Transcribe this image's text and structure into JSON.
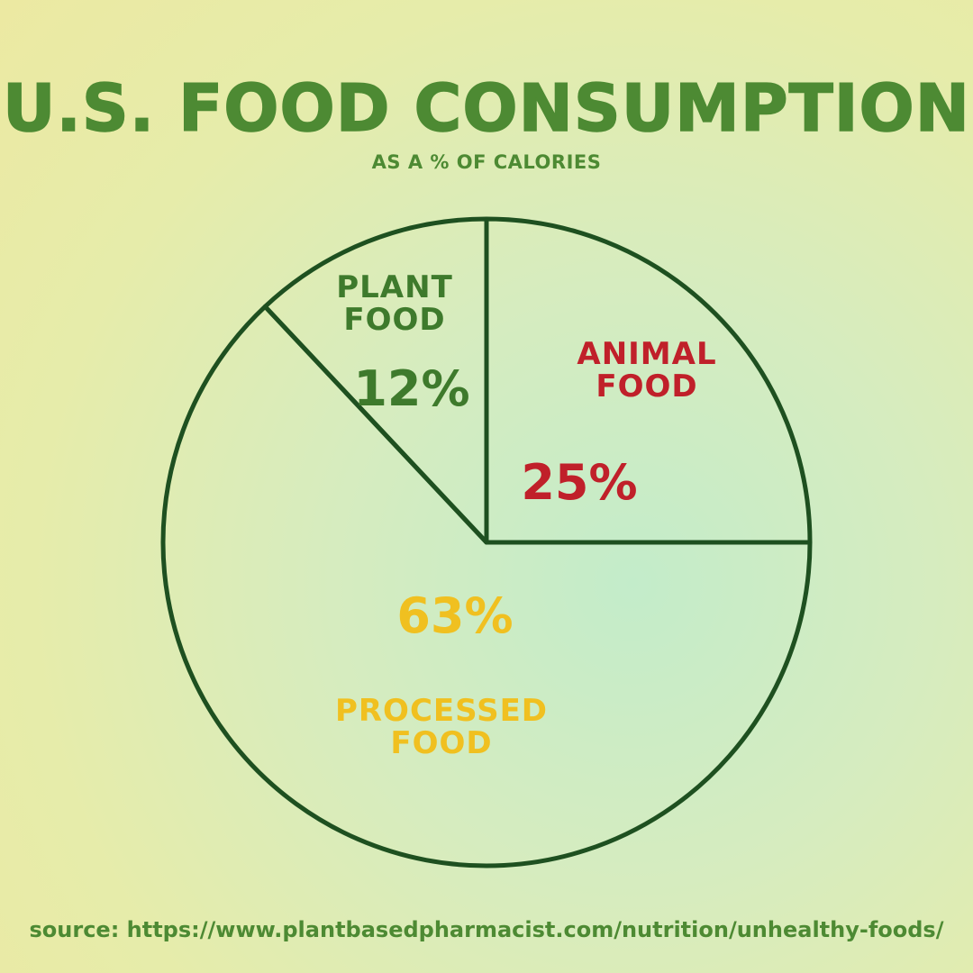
{
  "title": "U.S. FOOD CONSUMPTION",
  "subtitle": "AS A % OF CALORIES",
  "source": "source: https://www.plantbasedpharmacist.com/nutrition/unhealthy-foods/",
  "colors": {
    "outline": "#1e5020",
    "slice_fill": "#e8f0b0",
    "plant": "#3e7a2c",
    "animal": "#c0202a",
    "processed": "#f0c020"
  },
  "chart_data": {
    "type": "pie",
    "title": "U.S. FOOD CONSUMPTION",
    "subtitle": "AS A % OF CALORIES",
    "slices": [
      {
        "label_line1": "ANIMAL",
        "label_line2": "FOOD",
        "value": 25,
        "display": "25%"
      },
      {
        "label_line1": "PROCESSED",
        "label_line2": "FOOD",
        "value": 63,
        "display": "63%"
      },
      {
        "label_line1": "PLANT",
        "label_line2": "FOOD",
        "value": 12,
        "display": "12%"
      }
    ]
  }
}
